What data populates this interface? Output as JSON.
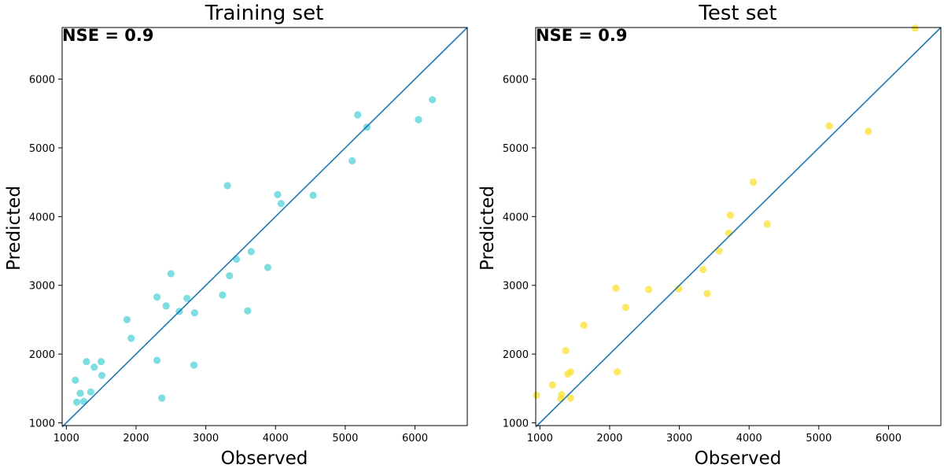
{
  "chart_data": [
    {
      "type": "scatter",
      "title": "Training set",
      "xlabel": "Observed",
      "ylabel": "Predicted",
      "annotation": "NSE = 0.9",
      "xlim": [
        940,
        6750
      ],
      "ylim": [
        960,
        6750
      ],
      "xticks": [
        1000,
        2000,
        3000,
        4000,
        5000,
        6000
      ],
      "yticks": [
        1000,
        2000,
        3000,
        4000,
        5000,
        6000
      ],
      "grid": false,
      "point_color": "#5bd6d9",
      "line_color": "#1f77b4",
      "reference_line": [
        [
          940,
          940
        ],
        [
          6750,
          6750
        ]
      ],
      "points": [
        [
          1130,
          1620
        ],
        [
          1150,
          1300
        ],
        [
          1200,
          1430
        ],
        [
          1250,
          1310
        ],
        [
          1290,
          1890
        ],
        [
          1350,
          1450
        ],
        [
          1400,
          1810
        ],
        [
          1500,
          1890
        ],
        [
          1510,
          1690
        ],
        [
          1870,
          2500
        ],
        [
          1930,
          2230
        ],
        [
          2300,
          2830
        ],
        [
          2300,
          1910
        ],
        [
          2370,
          1360
        ],
        [
          2430,
          2700
        ],
        [
          2500,
          3170
        ],
        [
          2620,
          2620
        ],
        [
          2730,
          2810
        ],
        [
          2830,
          1840
        ],
        [
          2840,
          2600
        ],
        [
          3240,
          2860
        ],
        [
          3310,
          4450
        ],
        [
          3340,
          3140
        ],
        [
          3440,
          3380
        ],
        [
          3600,
          2630
        ],
        [
          3650,
          3490
        ],
        [
          3890,
          3260
        ],
        [
          4030,
          4320
        ],
        [
          4080,
          4190
        ],
        [
          4540,
          4310
        ],
        [
          5100,
          4810
        ],
        [
          5180,
          5480
        ],
        [
          5310,
          5300
        ],
        [
          6050,
          5410
        ],
        [
          6250,
          5700
        ]
      ]
    },
    {
      "type": "scatter",
      "title": "Test set",
      "xlabel": "Observed",
      "ylabel": "Predicted",
      "annotation": "NSE = 0.9",
      "xlim": [
        940,
        6750
      ],
      "ylim": [
        960,
        6750
      ],
      "xticks": [
        1000,
        2000,
        3000,
        4000,
        5000,
        6000
      ],
      "yticks": [
        1000,
        2000,
        3000,
        4000,
        5000,
        6000
      ],
      "grid": false,
      "point_color": "#fde23c",
      "line_color": "#1f77b4",
      "reference_line": [
        [
          940,
          940
        ],
        [
          6750,
          6750
        ]
      ],
      "points": [
        [
          950,
          1400
        ],
        [
          1180,
          1550
        ],
        [
          1300,
          1350
        ],
        [
          1310,
          1410
        ],
        [
          1370,
          2050
        ],
        [
          1400,
          1710
        ],
        [
          1440,
          1740
        ],
        [
          1440,
          1360
        ],
        [
          1630,
          2420
        ],
        [
          2090,
          2960
        ],
        [
          2110,
          1740
        ],
        [
          2230,
          2680
        ],
        [
          2560,
          2940
        ],
        [
          2990,
          2950
        ],
        [
          3340,
          3230
        ],
        [
          3400,
          2880
        ],
        [
          3570,
          3500
        ],
        [
          3710,
          3760
        ],
        [
          3730,
          4020
        ],
        [
          4060,
          4500
        ],
        [
          4260,
          3890
        ],
        [
          5150,
          5320
        ],
        [
          5710,
          5240
        ],
        [
          6380,
          6740
        ]
      ]
    }
  ]
}
